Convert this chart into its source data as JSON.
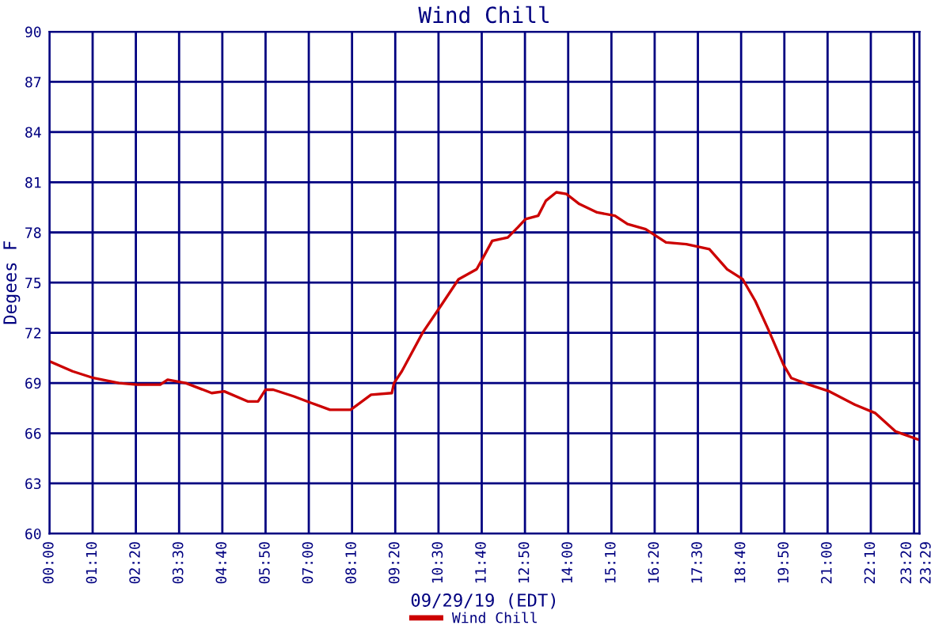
{
  "chart_data": {
    "type": "line",
    "title": "Wind Chill",
    "xlabel": "09/29/19 (EDT)",
    "ylabel": "Degees F",
    "x": [
      0,
      0.625,
      1.19,
      1.875,
      2.36,
      2.99,
      3.19,
      3.68,
      4.38,
      4.72,
      5.35,
      5.63,
      5.83,
      6.04,
      6.6,
      7.08,
      7.57,
      8.13,
      8.68,
      9.24,
      9.3,
      9.51,
      10.07,
      10.56,
      11.04,
      11.53,
      11.68,
      11.95,
      12.37,
      12.64,
      12.85,
      13.19,
      13.4,
      13.68,
      13.95,
      14.3,
      14.78,
      15.26,
      15.6,
      16.09,
      16.64,
      17.19,
      17.81,
      18.29,
      18.71,
      19.05,
      19.4,
      19.81,
      20.02,
      20.5,
      21.05,
      21.74,
      22.29,
      22.84,
      23.48
    ],
    "series": [
      {
        "name": "Wind Chill",
        "color": "#cc0000",
        "values": [
          70.3,
          69.7,
          69.3,
          69.0,
          68.9,
          68.9,
          69.2,
          69.0,
          68.4,
          68.5,
          67.9,
          67.9,
          68.6,
          68.6,
          68.2,
          67.8,
          67.4,
          67.4,
          68.3,
          68.4,
          69.0,
          69.7,
          72.0,
          73.6,
          75.2,
          75.8,
          76.4,
          77.5,
          77.7,
          78.3,
          78.8,
          79.0,
          79.9,
          80.4,
          80.3,
          79.7,
          79.2,
          79.0,
          78.5,
          78.2,
          77.4,
          77.3,
          77.0,
          75.8,
          75.2,
          73.9,
          72.2,
          70.1,
          69.3,
          68.9,
          68.5,
          67.7,
          67.2,
          66.1,
          65.6
        ]
      }
    ],
    "xlim": [
      0,
      23.483
    ],
    "xticks": [
      {
        "value": 0,
        "label": "00:00"
      },
      {
        "value": 1.1667,
        "label": "01:10"
      },
      {
        "value": 2.3333,
        "label": "02:20"
      },
      {
        "value": 3.5,
        "label": "03:30"
      },
      {
        "value": 4.6667,
        "label": "04:40"
      },
      {
        "value": 5.8333,
        "label": "05:50"
      },
      {
        "value": 7,
        "label": "07:00"
      },
      {
        "value": 8.1667,
        "label": "08:10"
      },
      {
        "value": 9.3333,
        "label": "09:20"
      },
      {
        "value": 10.5,
        "label": "10:30"
      },
      {
        "value": 11.6667,
        "label": "11:40"
      },
      {
        "value": 12.8333,
        "label": "12:50"
      },
      {
        "value": 14,
        "label": "14:00"
      },
      {
        "value": 15.1667,
        "label": "15:10"
      },
      {
        "value": 16.3333,
        "label": "16:20"
      },
      {
        "value": 17.5,
        "label": "17:30"
      },
      {
        "value": 18.6667,
        "label": "18:40"
      },
      {
        "value": 19.8333,
        "label": "19:50"
      },
      {
        "value": 21,
        "label": "21:00"
      },
      {
        "value": 22.1667,
        "label": "22:10"
      },
      {
        "value": 23.3333,
        "label": "23:20"
      },
      {
        "value": 23.483,
        "label": "23:29"
      }
    ],
    "ylim": [
      60,
      90
    ],
    "yticks": [
      60,
      63,
      66,
      69,
      72,
      75,
      78,
      81,
      84,
      87,
      90
    ],
    "grid": true,
    "legend": "bottom",
    "marker": "none",
    "line_style": "solid"
  }
}
